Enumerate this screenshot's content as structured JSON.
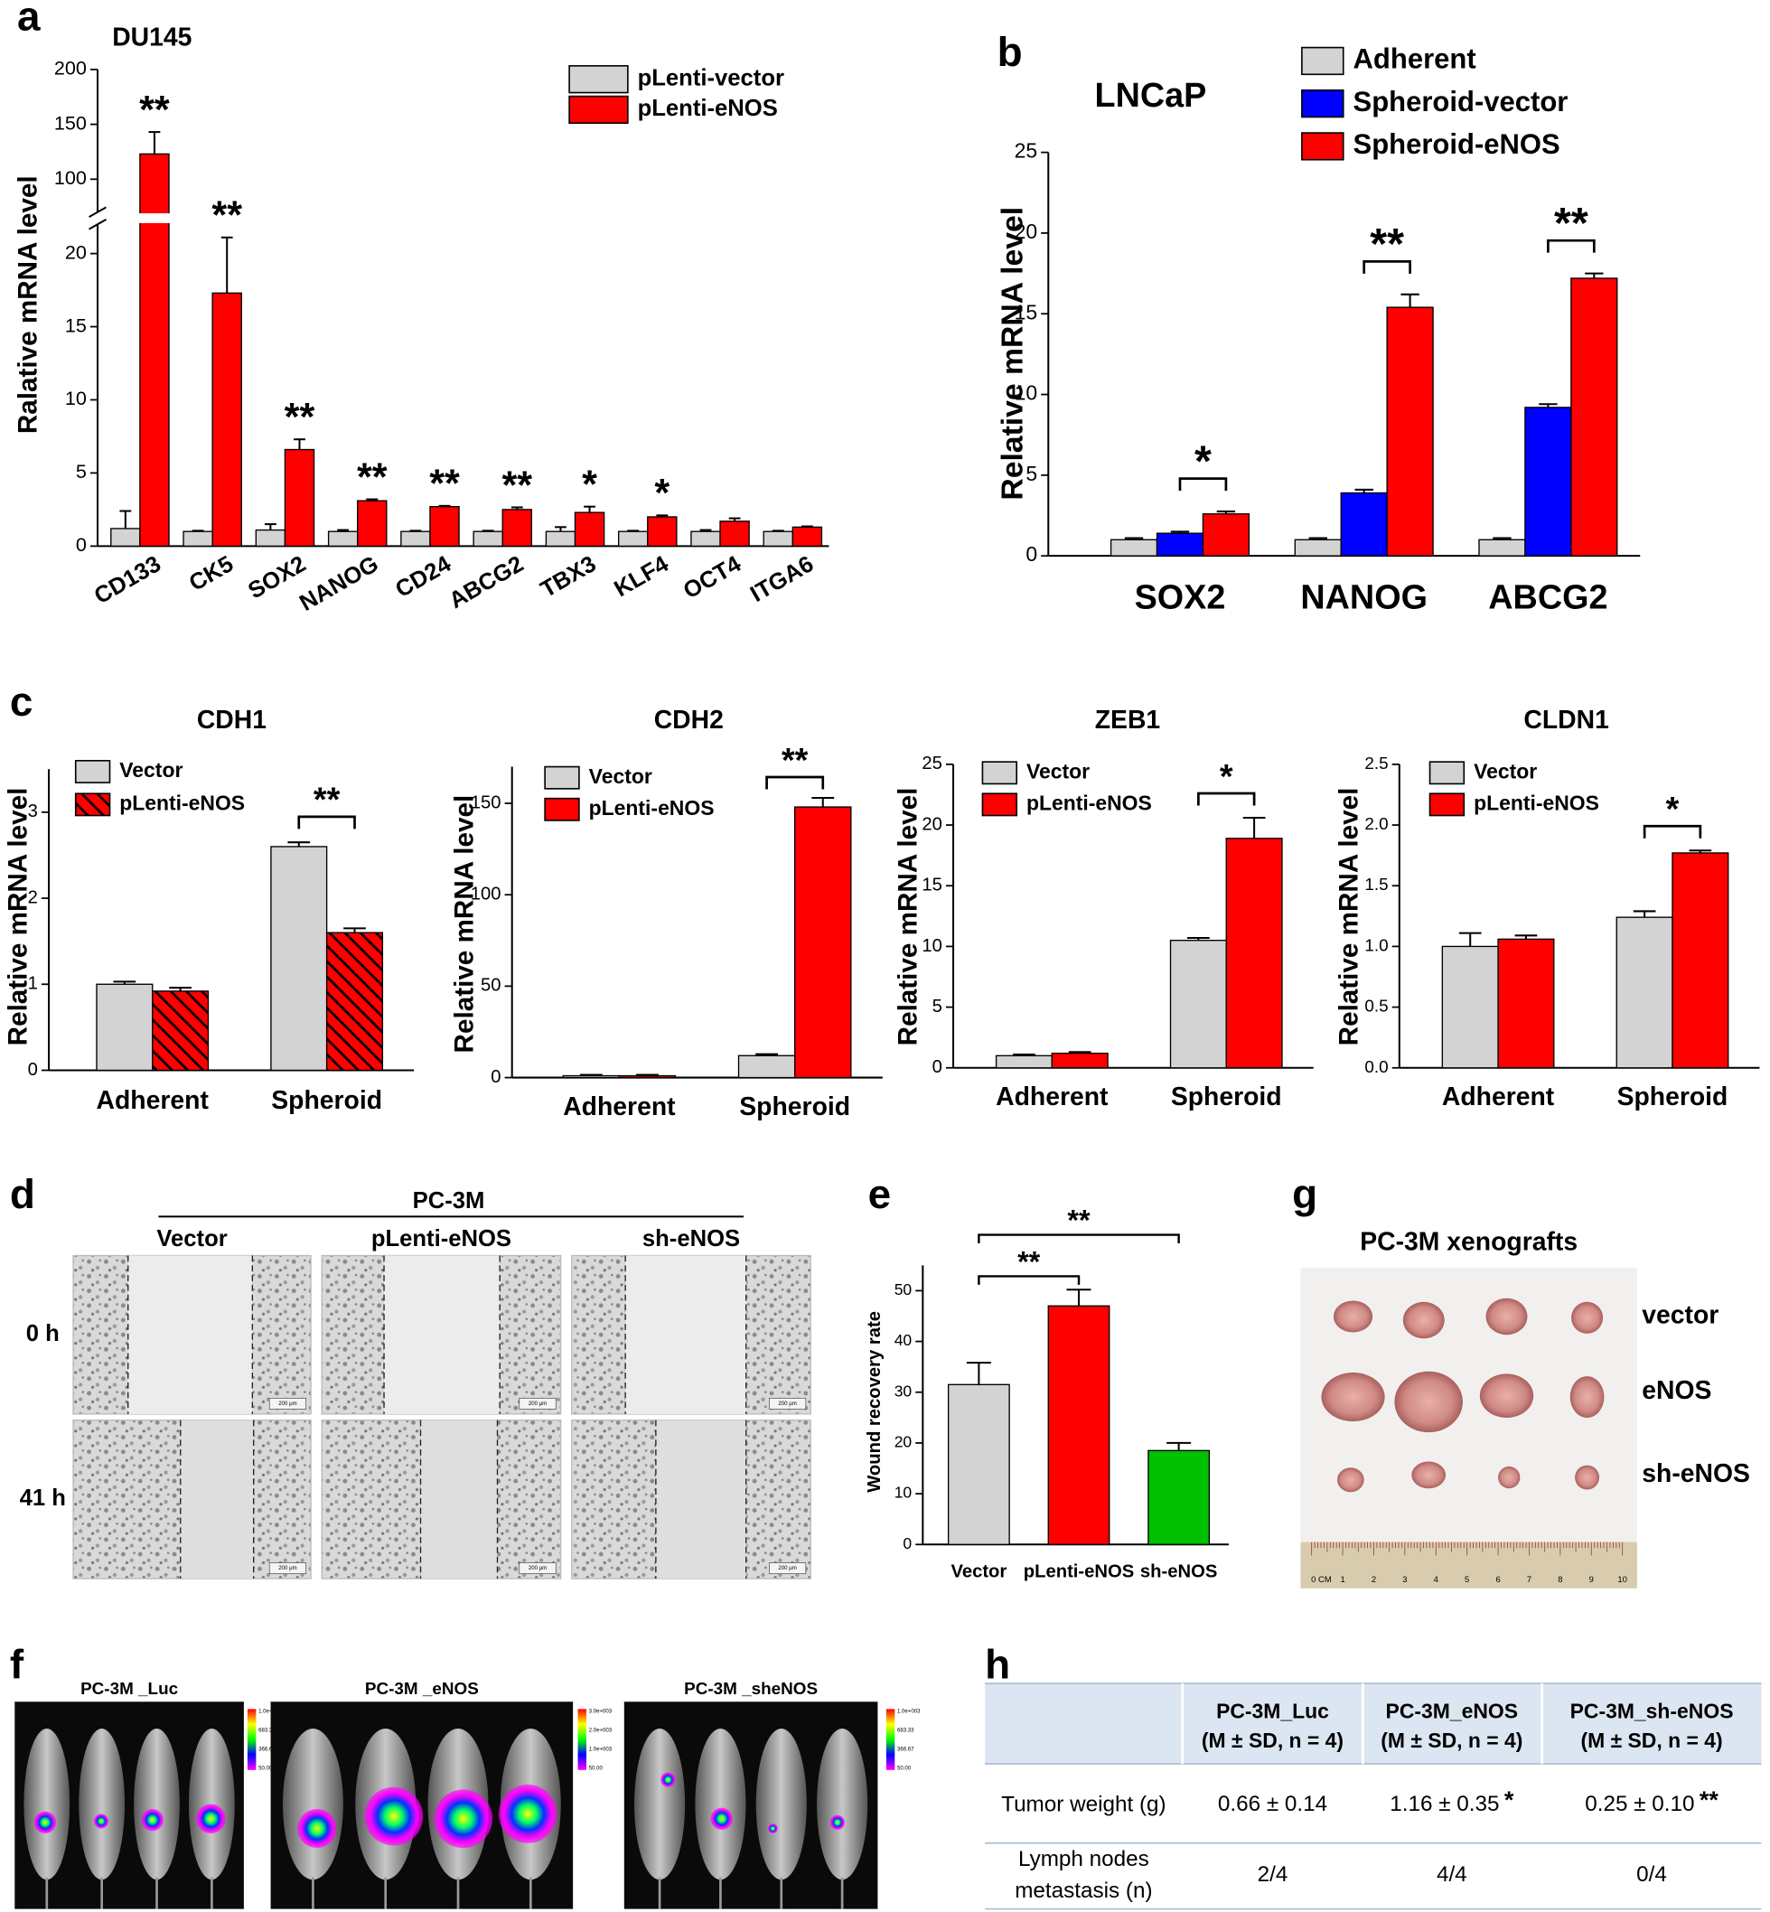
{
  "panel_labels": [
    "a",
    "b",
    "c",
    "d",
    "e",
    "f",
    "g",
    "h"
  ],
  "chart_data": [
    {
      "type": "bar",
      "title": "DU145",
      "y_label": "Ralative mRNA level",
      "categories": [
        "CD133",
        "CK5",
        "SOX2",
        "NANOG",
        "CD24",
        "ABCG2",
        "TBX3",
        "KLF4",
        "OCT4",
        "ITGA6"
      ],
      "series": [
        {
          "name": "pLenti-vector",
          "color": "#d3d3d3",
          "values": [
            1.2,
            1,
            1.1,
            1,
            1,
            1,
            1,
            1,
            1,
            1
          ],
          "errors": [
            1.2,
            0.05,
            0.4,
            0.1,
            0.05,
            0.05,
            0.3,
            0.05,
            0.1,
            0.05
          ]
        },
        {
          "name": "pLenti-eNOS",
          "color": "#ff0000",
          "values": [
            123,
            17.3,
            6.6,
            3.1,
            2.7,
            2.5,
            2.3,
            2.0,
            1.7,
            1.3
          ],
          "errors": [
            20,
            3.8,
            0.7,
            0.1,
            0.05,
            0.15,
            0.4,
            0.1,
            0.2,
            0.05
          ]
        }
      ],
      "significance": [
        "**",
        "**",
        "**",
        "**",
        "**",
        "**",
        "*",
        "*",
        null,
        null
      ],
      "ylim": [
        0,
        200
      ],
      "ybreak": [
        22,
        70
      ],
      "yticks": [
        0,
        5,
        10,
        15,
        20,
        100,
        150,
        200
      ]
    },
    {
      "type": "bar",
      "title": "LNCaP",
      "y_label": "Relative mRNA level",
      "categories": [
        "SOX2",
        "NANOG",
        "ABCG2"
      ],
      "series": [
        {
          "name": "Adherent",
          "color": "#d3d3d3",
          "values": [
            1,
            1,
            1
          ],
          "errors": [
            0.1,
            0.1,
            0.1
          ]
        },
        {
          "name": "Spheroid-vector",
          "color": "#0000ff",
          "values": [
            1.4,
            3.9,
            9.2
          ],
          "errors": [
            0.1,
            0.2,
            0.2
          ]
        },
        {
          "name": "Spheroid-eNOS",
          "color": "#ff0000",
          "values": [
            2.6,
            15.4,
            17.2
          ],
          "errors": [
            0.15,
            0.8,
            0.3
          ]
        }
      ],
      "significance": [
        "*",
        "**",
        "**"
      ],
      "ylim": [
        0,
        25
      ],
      "yticks": [
        0,
        5,
        10,
        15,
        20,
        25
      ]
    },
    {
      "type": "bar",
      "title": "CDH1",
      "y_label": "Relative mRNA level",
      "categories": [
        "Adherent",
        "Spheroid"
      ],
      "series": [
        {
          "name": "Vector",
          "color": "#d3d3d3",
          "values": [
            1,
            2.6
          ],
          "errors": [
            0.03,
            0.05
          ]
        },
        {
          "name": "pLenti-eNOS",
          "color": "#ff0000",
          "pattern": "hatch",
          "values": [
            0.92,
            1.6
          ],
          "errors": [
            0.04,
            0.05
          ]
        }
      ],
      "significance": [
        null,
        "**"
      ],
      "ylim": [
        0,
        3.5
      ],
      "yticks": [
        0,
        1,
        2,
        3
      ]
    },
    {
      "type": "bar",
      "title": "CDH2",
      "y_label": "Relative mRNA level",
      "categories": [
        "Adherent",
        "Spheroid"
      ],
      "series": [
        {
          "name": "Vector",
          "color": "#d3d3d3",
          "values": [
            1,
            12
          ],
          "errors": [
            0.5,
            0.8
          ]
        },
        {
          "name": "pLenti-eNOS",
          "color": "#ff0000",
          "values": [
            1,
            148
          ],
          "errors": [
            0.5,
            5
          ]
        }
      ],
      "significance": [
        null,
        "**"
      ],
      "ylim": [
        0,
        170
      ],
      "yticks": [
        0,
        50,
        100,
        150
      ]
    },
    {
      "type": "bar",
      "title": "ZEB1",
      "y_label": "Relative mRNA level",
      "categories": [
        "Adherent",
        "Spheroid"
      ],
      "series": [
        {
          "name": "Vector",
          "color": "#d3d3d3",
          "values": [
            1,
            10.5
          ],
          "errors": [
            0.1,
            0.2
          ]
        },
        {
          "name": "pLenti-eNOS",
          "color": "#ff0000",
          "values": [
            1.2,
            18.9
          ],
          "errors": [
            0.1,
            1.7
          ]
        }
      ],
      "significance": [
        null,
        "*"
      ],
      "ylim": [
        0,
        25
      ],
      "yticks": [
        0,
        5,
        10,
        15,
        20,
        25
      ]
    },
    {
      "type": "bar",
      "title": "CLDN1",
      "y_label": "Relative mRNA level",
      "categories": [
        "Adherent",
        "Spheroid"
      ],
      "series": [
        {
          "name": "Vector",
          "color": "#d3d3d3",
          "values": [
            1.0,
            1.24
          ],
          "errors": [
            0.11,
            0.05
          ]
        },
        {
          "name": "pLenti-eNOS",
          "color": "#ff0000",
          "values": [
            1.06,
            1.77
          ],
          "errors": [
            0.03,
            0.02
          ]
        }
      ],
      "significance": [
        null,
        "*"
      ],
      "ylim": [
        0,
        2.5
      ],
      "yticks": [
        {
          "value": 0,
          "label": "0.0"
        },
        0.5,
        {
          "value": 1,
          "label": "1.0"
        },
        1.5,
        {
          "value": 2,
          "label": "2.0"
        },
        2.5
      ]
    },
    {
      "type": "bar",
      "y_label": "Wound recovery rate",
      "categories": [
        "Vector",
        "pLenti-eNOS",
        "sh-eNOS"
      ],
      "values": [
        31.5,
        47,
        18.5
      ],
      "errors": [
        4.3,
        3.2,
        1.5
      ],
      "colors": [
        "#d3d3d3",
        "#ff0000",
        "#00c000"
      ],
      "significance": [
        "**",
        "**"
      ],
      "ylim": [
        0,
        55
      ],
      "yticks": [
        0,
        10,
        20,
        30,
        40,
        50
      ]
    }
  ],
  "wound_healing": {
    "cell_line": "PC-3M",
    "columns": [
      "Vector",
      "pLenti-eNOS",
      "sh-eNOS"
    ],
    "rows": [
      "0 h",
      "41 h"
    ],
    "scale_bar": "200 μm"
  },
  "bioluminescence": {
    "panels": [
      "PC-3M _Luc",
      "PC-3M _eNOS",
      "PC-3M _sheNOS"
    ],
    "colorbars": [
      [
        "1.0e+003",
        "683.33",
        "366.67",
        "50.00"
      ],
      [
        "3.0e+003",
        "2.0e+003",
        "1.0e+003",
        "50.00"
      ],
      [
        "1.0e+003",
        "683.33",
        "366.67",
        "50.00"
      ]
    ]
  },
  "xenografts": {
    "title": "PC-3M xenografts",
    "rows": [
      "vector",
      "eNOS",
      "sh-eNOS"
    ],
    "ruler": [
      "0 CM",
      "1",
      "2",
      "3",
      "4",
      "5",
      "6",
      "7",
      "8",
      "9",
      "10"
    ]
  },
  "table": {
    "header": [
      [
        "PC-3M_Luc",
        "(M ± SD, n = 4)"
      ],
      [
        "PC-3M_eNOS",
        "(M ± SD, n = 4)"
      ],
      [
        "PC-3M_sh-eNOS",
        "(M ± SD, n = 4)"
      ]
    ],
    "rows": [
      {
        "label": [
          "Tumor weight (g)"
        ],
        "cells": [
          {
            "text": "0.66 ± 0.14"
          },
          {
            "text": "1.16 ± 0.35",
            "mark": "*"
          },
          {
            "text": "0.25 ± 0.10",
            "mark": "**"
          }
        ]
      },
      {
        "label": [
          "Lymph nodes",
          "metastasis (n)"
        ],
        "cells": [
          {
            "text": "2/4"
          },
          {
            "text": "4/4"
          },
          {
            "text": "0/4"
          }
        ]
      }
    ]
  }
}
